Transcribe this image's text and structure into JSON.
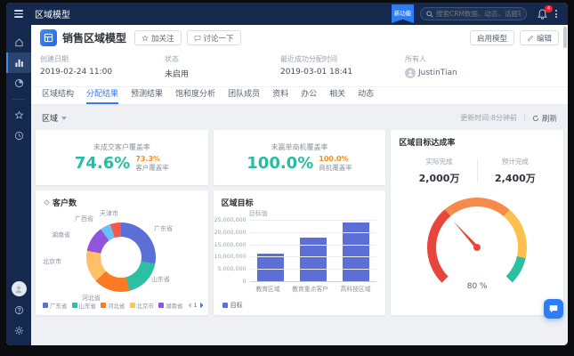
{
  "colors": {
    "navy": "#15294e",
    "primary": "#2e7cf6",
    "teal": "#26bda4",
    "orange": "#fa8c16",
    "indigo": "#5b6fd6"
  },
  "topbar": {
    "title": "区域模型",
    "badge": "新功能",
    "search_placeholder": "搜索CRM数据、动态、话题等",
    "notification_count": "4"
  },
  "header": {
    "title": "销售区域模型",
    "follow": "加关注",
    "discuss": "讨论一下",
    "enable": "启用模型",
    "edit": "编辑",
    "fields": [
      {
        "label": "创建日期",
        "value": "2019-02-24 11:00"
      },
      {
        "label": "状态",
        "value": "未启用"
      },
      {
        "label": "最近成功分配时间",
        "value": "2019-03-01 18:41"
      },
      {
        "label": "所有人",
        "value": "JustinTian"
      }
    ]
  },
  "tabs": {
    "items": [
      "区域结构",
      "分配结果",
      "预测结果",
      "饱和度分析",
      "团队成员",
      "资料",
      "办公",
      "相关",
      "动态"
    ],
    "active": "分配结果"
  },
  "toolbar": {
    "region_filter": "区域",
    "updated": "更新时间:8分钟前",
    "refresh": "刷新"
  },
  "kpis": [
    {
      "title": "未成交客户覆盖率",
      "value": "74.6%",
      "sub_value": "73.3%",
      "sub_label": "客户覆盖率"
    },
    {
      "title": "未赢单商机覆盖率",
      "value": "100.0%",
      "sub_value": "100.0%",
      "sub_label": "商机覆盖率"
    }
  ],
  "chart_data": [
    {
      "type": "pie",
      "title": "客户数",
      "segments": [
        {
          "label": "广东省",
          "value": 28,
          "color": "#5b6fd6"
        },
        {
          "label": "山东省",
          "value": 18,
          "color": "#2cbfa4"
        },
        {
          "label": "河北省",
          "value": 17,
          "color": "#fb7b25"
        },
        {
          "label": "北京市",
          "value": 15,
          "color": "#ffc069"
        },
        {
          "label": "湖南省",
          "value": 12,
          "color": "#9254de"
        },
        {
          "label": "广西省",
          "value": 5,
          "color": "#69c0ff"
        },
        {
          "label": "天津市",
          "value": 5,
          "color": "#f5564e"
        }
      ],
      "pager": {
        "prev": "prev",
        "page": "1",
        "next": "next"
      }
    },
    {
      "type": "bar",
      "title": "区域目标",
      "series_label": "目标值",
      "legend": "目标",
      "categories": [
        "教育区域",
        "教育重点客户",
        "高科技区域"
      ],
      "values": [
        11300000,
        17800000,
        23900000
      ],
      "ylim": [
        0,
        25000000
      ],
      "yticks": [
        "25,000,000",
        "20,000,000",
        "15,000,000",
        "10,000,000",
        "5,000,000",
        "0"
      ],
      "color": "#5b6fd6"
    },
    {
      "type": "gauge",
      "title": "区域目标达成率",
      "stats": [
        {
          "label": "实际完成",
          "value": "2,000万"
        },
        {
          "label": "预计完成",
          "value": "2,400万"
        }
      ],
      "value": "80 %",
      "arc": [
        {
          "color": "#e8453c",
          "to": 35
        },
        {
          "color": "#f58a4a",
          "to": 65
        },
        {
          "color": "#fbc04d",
          "to": 88
        },
        {
          "color": "#2bbfa3",
          "to": 100
        }
      ]
    }
  ]
}
